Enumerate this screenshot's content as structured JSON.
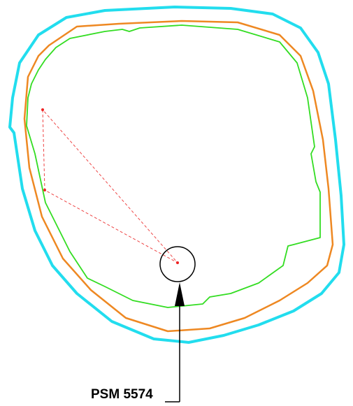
{
  "label": {
    "text": "PSM 5574"
  }
}
